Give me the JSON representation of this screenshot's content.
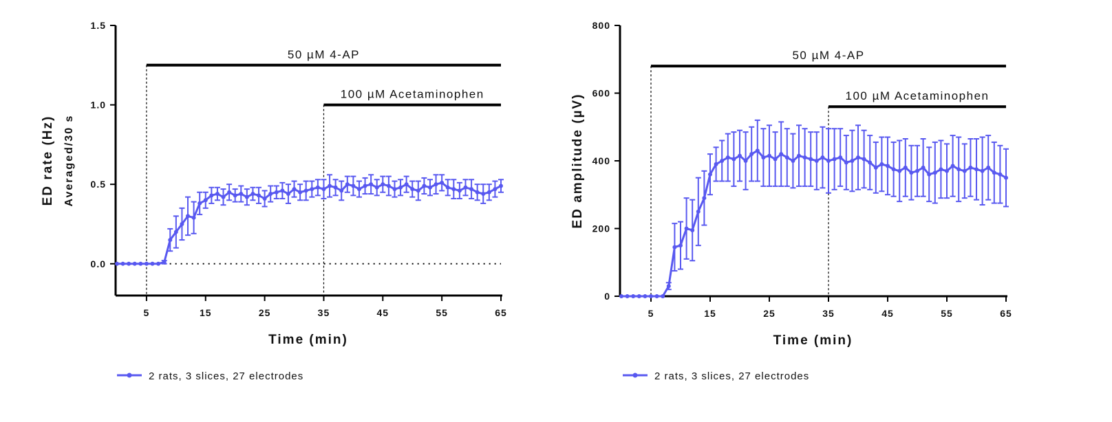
{
  "chart_data": [
    {
      "type": "line",
      "xlabel": "Time (min)",
      "ylabel": "ED rate (Hz)",
      "ylabel2": "Averaged/30 s",
      "xlim": [
        0,
        65
      ],
      "ylim": [
        -0.2,
        1.5
      ],
      "xticks": [
        "5",
        "15",
        "25",
        "35",
        "45",
        "55",
        "65"
      ],
      "xtick_values": [
        5,
        15,
        25,
        35,
        45,
        55,
        65
      ],
      "yticks": [
        "0.0",
        "0.5",
        "1.0",
        "1.5"
      ],
      "ytick_values": [
        0,
        0.5,
        1.0,
        1.5
      ],
      "annotations": [
        {
          "text": "50 µM 4-AP",
          "from": 5,
          "to": 65,
          "level": 1.25
        },
        {
          "text": "100 µM Acetaminophen",
          "from": 35,
          "to": 65,
          "level": 1.0
        }
      ],
      "reference_line_y": 0,
      "color": "#5858f0",
      "legend": "2 rats, 3 slices, 27 electrodes",
      "legend_position": "bottom-left",
      "series": [
        {
          "name": "2 rats, 3 slices, 27 electrodes",
          "x": [
            0,
            1,
            2,
            3,
            4,
            5,
            6,
            7,
            8,
            9,
            10,
            11,
            12,
            13,
            14,
            15,
            16,
            17,
            18,
            19,
            20,
            21,
            22,
            23,
            24,
            25,
            26,
            27,
            28,
            29,
            30,
            31,
            32,
            33,
            34,
            35,
            36,
            37,
            38,
            39,
            40,
            41,
            42,
            43,
            44,
            45,
            46,
            47,
            48,
            49,
            50,
            51,
            52,
            53,
            54,
            55,
            56,
            57,
            58,
            59,
            60,
            61,
            62,
            63,
            64,
            65
          ],
          "values": [
            0,
            0,
            0,
            0,
            0,
            0,
            0,
            0,
            0.01,
            0.15,
            0.2,
            0.25,
            0.3,
            0.29,
            0.38,
            0.4,
            0.43,
            0.44,
            0.42,
            0.45,
            0.43,
            0.44,
            0.42,
            0.44,
            0.43,
            0.41,
            0.44,
            0.45,
            0.46,
            0.44,
            0.47,
            0.45,
            0.46,
            0.47,
            0.48,
            0.47,
            0.49,
            0.48,
            0.46,
            0.5,
            0.49,
            0.47,
            0.49,
            0.5,
            0.48,
            0.5,
            0.49,
            0.47,
            0.48,
            0.5,
            0.47,
            0.46,
            0.49,
            0.48,
            0.5,
            0.51,
            0.48,
            0.47,
            0.46,
            0.48,
            0.47,
            0.45,
            0.44,
            0.45,
            0.47,
            0.49
          ],
          "errors": [
            0,
            0,
            0,
            0,
            0,
            0,
            0,
            0,
            0.01,
            0.07,
            0.1,
            0.1,
            0.12,
            0.1,
            0.07,
            0.05,
            0.05,
            0.04,
            0.05,
            0.05,
            0.04,
            0.05,
            0.05,
            0.04,
            0.05,
            0.05,
            0.05,
            0.04,
            0.05,
            0.06,
            0.05,
            0.05,
            0.06,
            0.05,
            0.05,
            0.06,
            0.07,
            0.05,
            0.06,
            0.05,
            0.06,
            0.05,
            0.05,
            0.06,
            0.05,
            0.05,
            0.06,
            0.05,
            0.05,
            0.05,
            0.05,
            0.06,
            0.05,
            0.05,
            0.06,
            0.05,
            0.05,
            0.06,
            0.05,
            0.05,
            0.06,
            0.05,
            0.06,
            0.05,
            0.05,
            0.04
          ]
        }
      ]
    },
    {
      "type": "line",
      "xlabel": "Time (min)",
      "ylabel": "ED amplitude (µV)",
      "xlim": [
        0,
        65
      ],
      "ylim": [
        0,
        800
      ],
      "xticks": [
        "5",
        "15",
        "25",
        "35",
        "45",
        "55",
        "65"
      ],
      "xtick_values": [
        5,
        15,
        25,
        35,
        45,
        55,
        65
      ],
      "yticks": [
        "0",
        "200",
        "400",
        "600",
        "800"
      ],
      "ytick_values": [
        0,
        200,
        400,
        600,
        800
      ],
      "annotations": [
        {
          "text": "50 µM 4-AP",
          "from": 5,
          "to": 65,
          "level": 680
        },
        {
          "text": "100 µM Acetaminophen",
          "from": 35,
          "to": 65,
          "level": 560
        }
      ],
      "color": "#5858f0",
      "legend": "2 rats, 3 slices, 27 electrodes",
      "legend_position": "bottom-left",
      "series": [
        {
          "name": "2 rats, 3 slices, 27 electrodes",
          "x": [
            0,
            1,
            2,
            3,
            4,
            5,
            6,
            7,
            8,
            9,
            10,
            11,
            12,
            13,
            14,
            15,
            16,
            17,
            18,
            19,
            20,
            21,
            22,
            23,
            24,
            25,
            26,
            27,
            28,
            29,
            30,
            31,
            32,
            33,
            34,
            35,
            36,
            37,
            38,
            39,
            40,
            41,
            42,
            43,
            44,
            45,
            46,
            47,
            48,
            49,
            50,
            51,
            52,
            53,
            54,
            55,
            56,
            57,
            58,
            59,
            60,
            61,
            62,
            63,
            64,
            65
          ],
          "values": [
            0,
            0,
            0,
            0,
            0,
            0,
            0,
            0,
            30,
            145,
            150,
            200,
            195,
            250,
            290,
            360,
            390,
            400,
            410,
            405,
            415,
            400,
            420,
            430,
            410,
            415,
            405,
            420,
            410,
            400,
            415,
            410,
            405,
            400,
            410,
            400,
            405,
            410,
            395,
            400,
            410,
            405,
            395,
            380,
            390,
            385,
            375,
            370,
            380,
            365,
            370,
            380,
            360,
            365,
            375,
            370,
            385,
            375,
            370,
            380,
            375,
            370,
            380,
            365,
            360,
            350
          ],
          "errors": [
            0,
            0,
            0,
            0,
            0,
            0,
            0,
            0,
            10,
            70,
            70,
            90,
            90,
            100,
            80,
            60,
            50,
            60,
            70,
            80,
            75,
            85,
            80,
            90,
            85,
            90,
            80,
            95,
            85,
            80,
            90,
            85,
            80,
            85,
            90,
            95,
            90,
            85,
            80,
            90,
            95,
            85,
            80,
            75,
            80,
            85,
            80,
            90,
            85,
            80,
            75,
            85,
            80,
            90,
            85,
            80,
            90,
            95,
            80,
            85,
            90,
            100,
            95,
            90,
            85,
            85
          ]
        }
      ]
    }
  ]
}
